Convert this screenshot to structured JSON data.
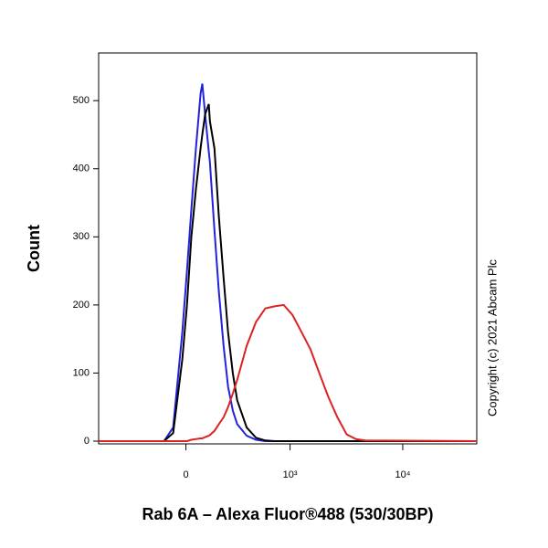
{
  "chart_data": {
    "type": "line",
    "xlabel": "Rab 6A – Alexa Fluor®488 (530/30BP)",
    "ylabel": "Count",
    "annotation": "Copyright (c) 2021 Abcam Plc",
    "xscale": "asinh",
    "x": [
      -700,
      -113,
      -64,
      -18,
      5,
      27,
      50,
      74,
      83,
      98,
      118,
      124,
      150,
      176,
      206,
      236,
      270,
      304,
      385,
      479,
      590,
      720,
      874,
      1055,
      1270,
      1525,
      1830,
      2200,
      2650,
      3200,
      3860,
      4650,
      44960
    ],
    "series": [
      {
        "name": "blue",
        "color": "#2222dd",
        "values": [
          0,
          0,
          20,
          160,
          250,
          340,
          430,
          510,
          525,
          480,
          425,
          410,
          310,
          220,
          140,
          80,
          45,
          25,
          8,
          2,
          0,
          0,
          0,
          0,
          0,
          0,
          0,
          0,
          0,
          0,
          0,
          0,
          0
        ]
      },
      {
        "name": "black",
        "color": "#000000",
        "values": [
          0,
          0,
          12,
          120,
          200,
          300,
          370,
          430,
          450,
          480,
          495,
          470,
          430,
          330,
          240,
          160,
          100,
          60,
          20,
          5,
          1,
          0,
          0,
          0,
          0,
          0,
          0,
          0,
          0,
          0,
          0,
          0,
          0
        ]
      },
      {
        "name": "red",
        "color": "#dd2222",
        "values": [
          0,
          0,
          0,
          0,
          0,
          2,
          3,
          4,
          4,
          6,
          8,
          9,
          15,
          25,
          35,
          50,
          70,
          90,
          140,
          175,
          195,
          198,
          200,
          185,
          160,
          135,
          100,
          65,
          35,
          10,
          3,
          1,
          0
        ]
      }
    ],
    "xlim": [
      -700,
      44960
    ],
    "xticks": [
      0,
      {
        "value": 1000,
        "label": "10³"
      },
      {
        "value": 10000,
        "label": "10⁴"
      }
    ],
    "ylim": [
      -4,
      570
    ],
    "yticks": [
      0,
      100,
      200,
      300,
      400,
      500
    ]
  }
}
